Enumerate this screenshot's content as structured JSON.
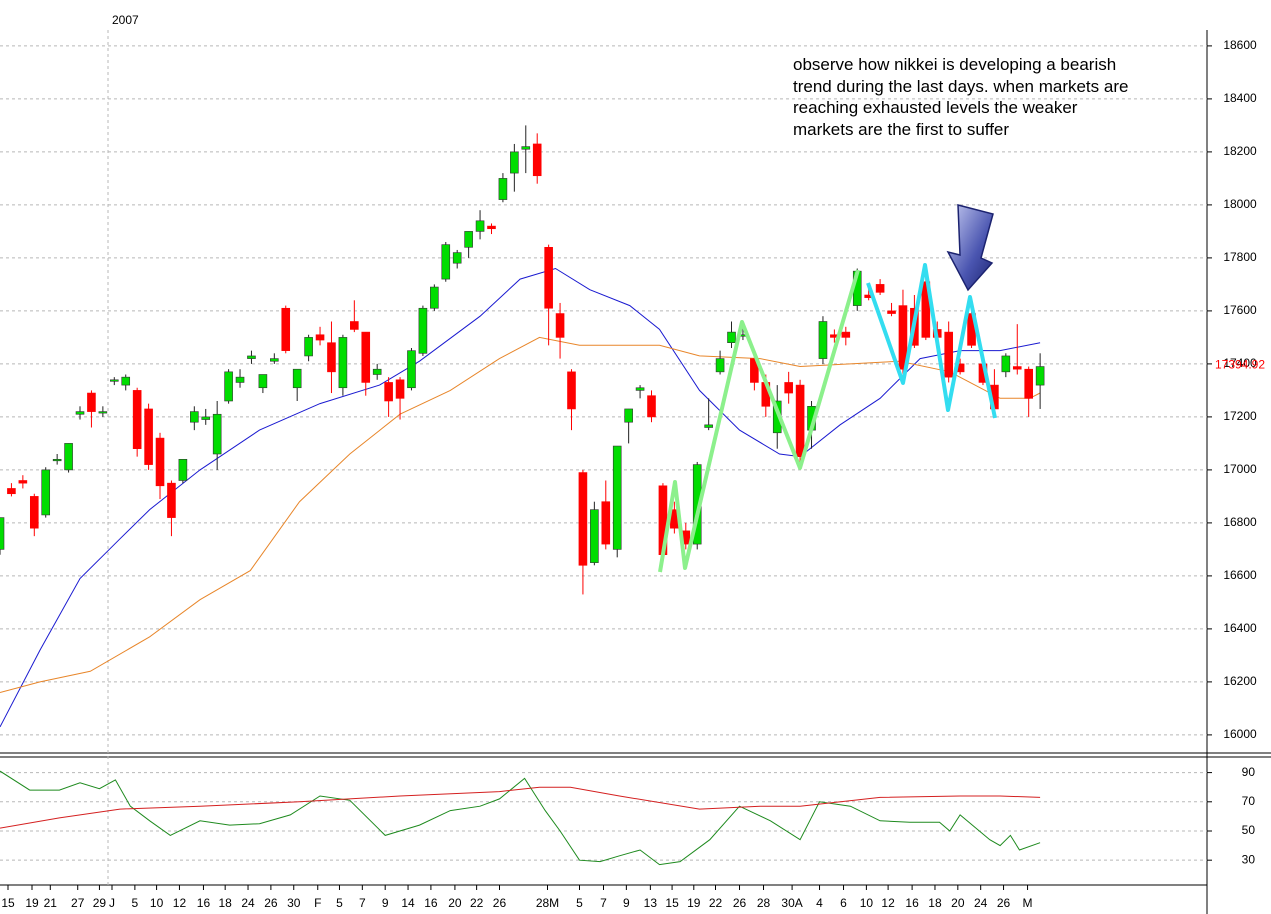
{
  "chart_data": {
    "type": "candlestick",
    "year_marker": {
      "value": 9.45,
      "label": "2007"
    },
    "annotation": [
      "observe how nikkei is developing a bearish",
      "trend during the last days. when markets are",
      "reaching exhausted levels the weaker",
      "markets are the first to suffer"
    ],
    "last_price": 17394.92,
    "last_price_color": "#ff0000",
    "up_color": "#00dd00",
    "down_color": "#ff0000",
    "open": [
      16700,
      16930,
      16960,
      16900,
      16830,
      17040,
      17000,
      17210,
      17290,
      17220,
      17340,
      17320,
      17300,
      17230,
      17120,
      16950,
      16960,
      17180,
      17190,
      17060,
      17260,
      17330,
      17420,
      17310,
      17410,
      17610,
      17310,
      17430,
      17510,
      17480,
      17310,
      17560,
      17520,
      17360,
      17330,
      17340,
      17310,
      17440,
      17610,
      17720,
      17780,
      17840,
      17900,
      17920,
      18020,
      18120,
      18210,
      18230,
      17840,
      17590,
      17370,
      16990,
      16650,
      16880,
      16700,
      17180,
      17300,
      17280,
      16940,
      16850,
      16770,
      16720,
      17160,
      17370,
      17480,
      17510,
      17420,
      17330,
      17140,
      17330,
      17320,
      17150,
      17420,
      17510,
      17520,
      17620,
      17660,
      17700,
      17600,
      17620,
      17610,
      17710,
      17530,
      17520,
      17400,
      17590,
      17400,
      17320,
      17370,
      17390,
      17380,
      17320
    ],
    "high": [
      16820,
      16950,
      16980,
      16910,
      17010,
      17060,
      17100,
      17240,
      17300,
      17240,
      17350,
      17360,
      17310,
      17250,
      17140,
      16960,
      17040,
      17240,
      17230,
      17260,
      17380,
      17380,
      17450,
      17360,
      17440,
      17620,
      17380,
      17510,
      17540,
      17560,
      17510,
      17640,
      17520,
      17400,
      17350,
      17350,
      17460,
      17620,
      17700,
      17860,
      17830,
      17900,
      17980,
      17930,
      18120,
      18230,
      18300,
      18270,
      17850,
      17630,
      17380,
      17000,
      16880,
      16960,
      17090,
      17230,
      17320,
      17300,
      16950,
      16880,
      16800,
      17030,
      17270,
      17450,
      17560,
      17540,
      17440,
      17360,
      17320,
      17370,
      17340,
      17260,
      17580,
      17530,
      17540,
      17760,
      17690,
      17720,
      17630,
      17680,
      17660,
      17730,
      17560,
      17560,
      17420,
      17600,
      17420,
      17380,
      17440,
      17550,
      17390,
      17440
    ],
    "low": [
      16680,
      16900,
      16930,
      16750,
      16820,
      17020,
      16990,
      17190,
      17160,
      17200,
      17320,
      17300,
      17050,
      17000,
      16890,
      16750,
      16950,
      17150,
      17170,
      17000,
      17250,
      17310,
      17400,
      17290,
      17400,
      17440,
      17260,
      17410,
      17470,
      17290,
      17280,
      17520,
      17280,
      17340,
      17200,
      17190,
      17300,
      17430,
      17600,
      17710,
      17760,
      17800,
      17870,
      17890,
      18010,
      18050,
      18120,
      18080,
      17470,
      17420,
      17150,
      16530,
      16640,
      16700,
      16670,
      17100,
      17270,
      17180,
      16670,
      16760,
      16700,
      16700,
      17150,
      17360,
      17460,
      17490,
      17300,
      17200,
      17080,
      17250,
      17030,
      17080,
      17400,
      17480,
      17470,
      17600,
      17640,
      17660,
      17580,
      17360,
      17460,
      17490,
      17490,
      17330,
      17360,
      17460,
      17320,
      17220,
      17350,
      17360,
      17200,
      17230
    ],
    "close": [
      16820,
      16910,
      16950,
      16780,
      17000,
      17040,
      17100,
      17220,
      17220,
      17220,
      17340,
      17350,
      17080,
      17020,
      16940,
      16820,
      17040,
      17220,
      17200,
      17210,
      17370,
      17350,
      17430,
      17360,
      17420,
      17450,
      17380,
      17500,
      17490,
      17370,
      17500,
      17530,
      17330,
      17380,
      17260,
      17270,
      17450,
      17610,
      17690,
      17850,
      17820,
      17900,
      17940,
      17910,
      18100,
      18200,
      18220,
      18110,
      17610,
      17500,
      17230,
      16640,
      16850,
      16720,
      17090,
      17230,
      17310,
      17200,
      16680,
      16780,
      16720,
      17020,
      17170,
      17420,
      17520,
      17510,
      17330,
      17240,
      17260,
      17290,
      17050,
      17240,
      17560,
      17500,
      17500,
      17750,
      17650,
      17670,
      17590,
      17380,
      17470,
      17500,
      17500,
      17350,
      17370,
      17470,
      17330,
      17230,
      17430,
      17380,
      17270,
      17390
    ],
    "moving_averages": [
      {
        "color": "#1a1ad0",
        "x": [
          0,
          3.5,
          7,
          10.5,
          13.1,
          17.5,
          22.7,
          28,
          33.2,
          36.7,
          42,
          45.5,
          48.6,
          51.6,
          55.1,
          57.7,
          61.2,
          64.7,
          68.2,
          70,
          73.5,
          77,
          80.5,
          84,
          87.5,
          91
        ],
        "values": [
          16030,
          16320,
          16590,
          16740,
          16850,
          17000,
          17150,
          17250,
          17320,
          17410,
          17580,
          17720,
          17760,
          17680,
          17620,
          17530,
          17300,
          17150,
          17060,
          17050,
          17170,
          17270,
          17420,
          17450,
          17450,
          17480
        ]
      },
      {
        "color": "#e8862a",
        "x": [
          0,
          3.5,
          7.9,
          13.1,
          17.5,
          21.9,
          26.2,
          30.6,
          35,
          39.4,
          43.7,
          47.2,
          50.7,
          55.1,
          57.7,
          61.2,
          66.5,
          70,
          74.4,
          78.7,
          83.1,
          87.5,
          90.1,
          91
        ],
        "values": [
          16160,
          16200,
          16240,
          16370,
          16510,
          16620,
          16880,
          17060,
          17210,
          17300,
          17420,
          17500,
          17470,
          17470,
          17470,
          17430,
          17420,
          17390,
          17400,
          17410,
          17370,
          17270,
          17270,
          17290
        ]
      }
    ],
    "xlim": [
      0,
      105.6
    ],
    "ylim": [
      15943,
      18660
    ],
    "yticks": [
      16000,
      16200,
      16400,
      16600,
      16800,
      17000,
      17200,
      17400,
      17600,
      17800,
      18000,
      18200,
      18400,
      18600
    ],
    "grid": true,
    "xticks": [
      {
        "value": 0.7,
        "label": "15"
      },
      {
        "value": 2.8,
        "label": "19"
      },
      {
        "value": 4.4,
        "label": "21"
      },
      {
        "value": 6.8,
        "label": "27"
      },
      {
        "value": 8.7,
        "label": "29"
      },
      {
        "value": 9.8,
        "label": "J"
      },
      {
        "value": 11.8,
        "label": "5"
      },
      {
        "value": 13.7,
        "label": "10"
      },
      {
        "value": 15.7,
        "label": "12"
      },
      {
        "value": 17.8,
        "label": "16"
      },
      {
        "value": 19.7,
        "label": "18"
      },
      {
        "value": 21.7,
        "label": "24"
      },
      {
        "value": 23.7,
        "label": "26"
      },
      {
        "value": 25.7,
        "label": "30"
      },
      {
        "value": 27.8,
        "label": "F"
      },
      {
        "value": 29.7,
        "label": "5"
      },
      {
        "value": 31.7,
        "label": "7"
      },
      {
        "value": 33.7,
        "label": "9"
      },
      {
        "value": 35.7,
        "label": "14"
      },
      {
        "value": 37.7,
        "label": "16"
      },
      {
        "value": 39.8,
        "label": "20"
      },
      {
        "value": 41.7,
        "label": "22"
      },
      {
        "value": 43.7,
        "label": "26"
      },
      {
        "value": 47.9,
        "label": "28M"
      },
      {
        "value": 50.7,
        "label": "5"
      },
      {
        "value": 52.8,
        "label": "7"
      },
      {
        "value": 54.8,
        "label": "9"
      },
      {
        "value": 56.9,
        "label": "13"
      },
      {
        "value": 58.8,
        "label": "15"
      },
      {
        "value": 60.7,
        "label": "19"
      },
      {
        "value": 62.6,
        "label": "22"
      },
      {
        "value": 64.7,
        "label": "26"
      },
      {
        "value": 66.8,
        "label": "28"
      },
      {
        "value": 69.3,
        "label": "30A"
      },
      {
        "value": 71.7,
        "label": "4"
      },
      {
        "value": 73.8,
        "label": "6"
      },
      {
        "value": 75.8,
        "label": "10"
      },
      {
        "value": 77.7,
        "label": "12"
      },
      {
        "value": 79.8,
        "label": "16"
      },
      {
        "value": 81.8,
        "label": "18"
      },
      {
        "value": 83.8,
        "label": "20"
      },
      {
        "value": 85.8,
        "label": "24"
      },
      {
        "value": 87.8,
        "label": "26"
      },
      {
        "value": 89.9,
        "label": "M"
      }
    ],
    "lower_panel": {
      "ylim": [
        13,
        100
      ],
      "yticks": [
        30,
        50,
        70,
        90
      ],
      "series": [
        {
          "color": "#1e8a1e",
          "x": [
            0,
            2.6,
            5.2,
            7,
            8.7,
            10.1,
            11.4,
            13.1,
            14.9,
            17.5,
            20.1,
            22.7,
            25.4,
            28,
            30.6,
            33.7,
            36.7,
            39.4,
            42,
            43.7,
            45.9,
            47.7,
            49,
            50.7,
            52.5,
            54.2,
            56,
            57.7,
            59.5,
            62.1,
            64.7,
            67.4,
            70,
            71.7,
            74.4,
            77,
            79.6,
            82.2,
            83.1,
            84,
            86.6,
            87.5,
            88.4,
            89.2,
            91
          ],
          "values": [
            91,
            78,
            78,
            83,
            79,
            85,
            67,
            57,
            47,
            57,
            54,
            55,
            61,
            74,
            71,
            47,
            54,
            64,
            67,
            72,
            86,
            64,
            50,
            30,
            29,
            33,
            37,
            27,
            29,
            44,
            67,
            57,
            44,
            70,
            67,
            57,
            56,
            56,
            50,
            61,
            44,
            40,
            47,
            37,
            42
          ]
        },
        {
          "color": "#d42020",
          "x": [
            0,
            5.2,
            10.5,
            17.5,
            26.2,
            35,
            43.7,
            47.2,
            49.9,
            54.2,
            61.2,
            66.5,
            70,
            77,
            84,
            87.5,
            91
          ],
          "values": [
            52,
            59,
            65,
            67,
            70,
            74,
            77,
            80,
            80,
            74,
            65,
            67,
            67,
            73,
            74,
            74,
            73
          ]
        }
      ]
    }
  }
}
